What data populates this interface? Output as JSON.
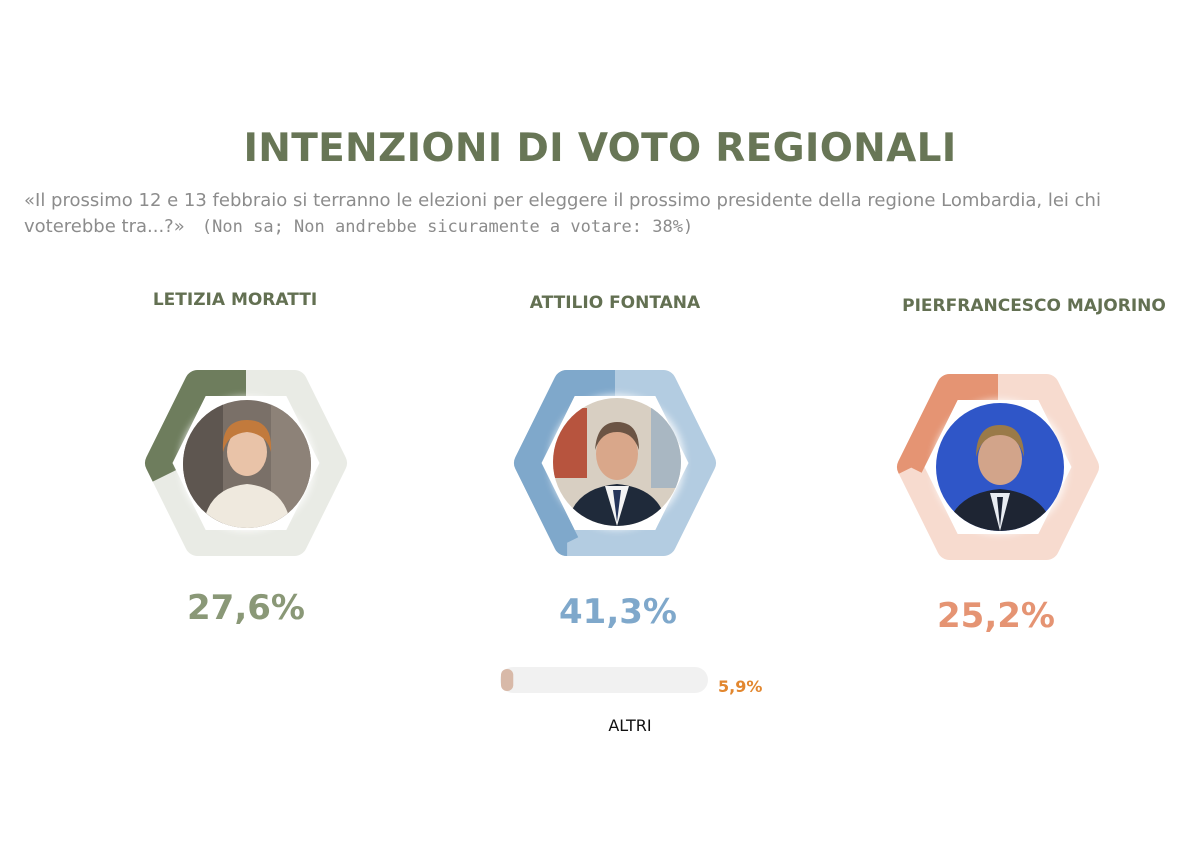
{
  "header": {
    "title": "INTENZIONI DI VOTO REGIONALI",
    "question": "«Il prossimo 12 e 13 febbraio si terranno le elezioni per eleggere il prossimo presidente della regione Lombardia, lei chi voterebbe tra...?»",
    "note": "(Non sa; Non andrebbe sicuramente a votare: 38%)"
  },
  "chart_data": {
    "type": "pie",
    "title": "INTENZIONI DI VOTO REGIONALI",
    "candidates": [
      {
        "name": "LETIZIA MORATTI",
        "value": 27.6,
        "label": "27,6%",
        "color": "#6e7d5d",
        "track_color": "#e9ebe5"
      },
      {
        "name": "ATTILIO FONTANA",
        "value": 41.3,
        "label": "41,3%",
        "color": "#7fa8cb",
        "track_color": "#b3cce1"
      },
      {
        "name": "PIERFRANCESCO MAJORINO",
        "value": 25.2,
        "label": "25,2%",
        "color": "#e59473",
        "track_color": "#f7dbcf"
      }
    ],
    "others": {
      "name": "ALTRI",
      "value": 5.9,
      "label": "5,9%",
      "color": "#d8b9a8",
      "track_color": "#f1f1f1",
      "label_color": "#e2872f"
    },
    "pct_colors": [
      "#8a9877",
      "#7fa8cb",
      "#e59473"
    ]
  }
}
